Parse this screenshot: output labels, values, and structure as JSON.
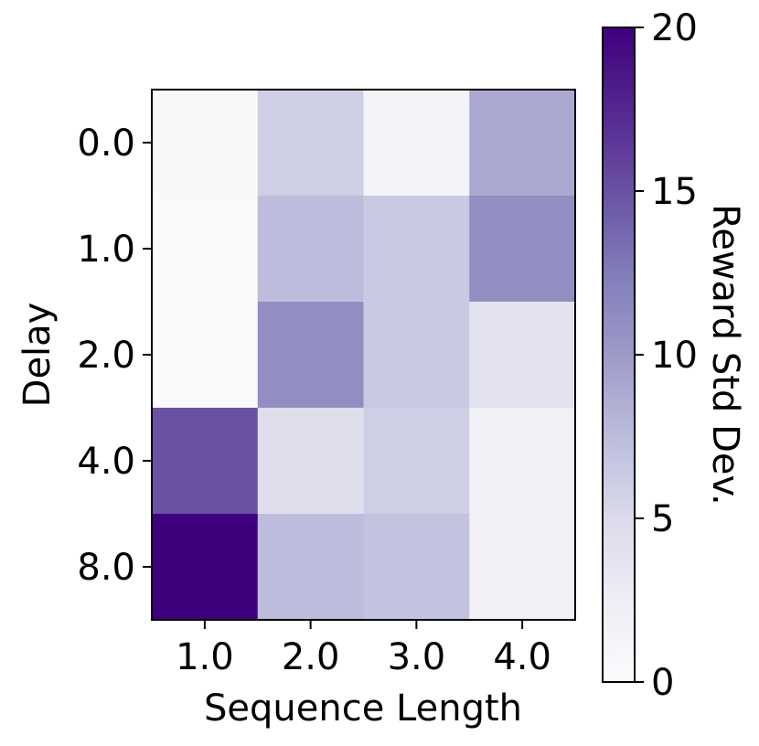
{
  "chart_data": {
    "type": "heatmap",
    "xlabel": "Sequence Length",
    "ylabel": "Delay",
    "x_categories": [
      "1.0",
      "2.0",
      "3.0",
      "4.0"
    ],
    "y_categories": [
      "0.0",
      "1.0",
      "2.0",
      "4.0",
      "8.0"
    ],
    "values": [
      [
        0.8,
        6.0,
        1.5,
        9.0
      ],
      [
        0.6,
        7.5,
        6.5,
        11.0
      ],
      [
        0.4,
        11.0,
        6.5,
        4.0
      ],
      [
        15.0,
        4.5,
        6.0,
        2.0
      ],
      [
        20.0,
        7.5,
        7.0,
        2.0
      ]
    ],
    "colorbar": {
      "label": "Reward Std Dev.",
      "range": [
        0,
        20
      ],
      "ticks": [
        "0",
        "5",
        "10",
        "15",
        "20"
      ],
      "colormap": "Purples",
      "color_stops": [
        "#fcfbfd",
        "#efedf5",
        "#dadaeb",
        "#bcbddc",
        "#9e9ac8",
        "#807dba",
        "#6a51a3",
        "#54278f",
        "#3f007d"
      ]
    }
  }
}
